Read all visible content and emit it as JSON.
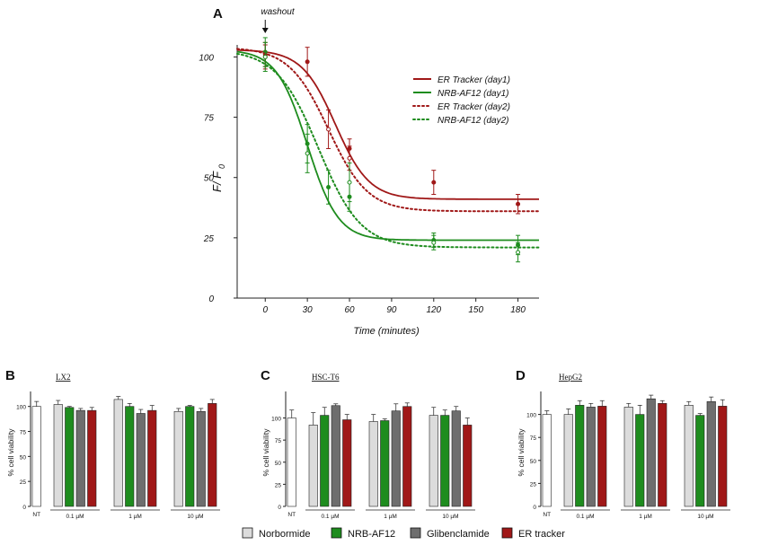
{
  "colors": {
    "er_tracker": "#a01818",
    "nrb_af12": "#1e8c1e",
    "norbormide": "#dcdcdc",
    "glibenclamide": "#6e6e6e",
    "nt": "#ffffff"
  },
  "legend": {
    "norbormide": "Norbormide",
    "nrb_af12": "NRB-AF12",
    "glibenclamide": "Glibenclamide",
    "er_tracker": "ER tracker"
  },
  "chart_data": [
    {
      "type": "line",
      "panel": "A",
      "annotation": "washout",
      "xlabel": "Time (minutes)",
      "ylabel_main": "F/ F",
      "ylabel_sub": "0",
      "xlim": [
        -20,
        195
      ],
      "ylim": [
        0,
        105
      ],
      "xticks": [
        0,
        30,
        60,
        90,
        120,
        150,
        180
      ],
      "yticks": [
        0,
        25,
        50,
        75,
        100
      ],
      "series": [
        {
          "name": "ER Tracker (day1)",
          "color": "#a01818",
          "style": "solid",
          "fit": {
            "top": 103,
            "bottom": 41,
            "x50": 50,
            "slope": 12
          },
          "points": [
            {
              "x": 0,
              "y": 101,
              "err": 5
            },
            {
              "x": 30,
              "y": 98,
              "err": 6
            },
            {
              "x": 60,
              "y": 62,
              "err": 4
            },
            {
              "x": 120,
              "y": 48,
              "err": 5
            },
            {
              "x": 180,
              "y": 39,
              "err": 4
            }
          ]
        },
        {
          "name": "NRB-AF12 (day1)",
          "color": "#1e8c1e",
          "style": "solid",
          "fit": {
            "top": 103,
            "bottom": 24,
            "x50": 30,
            "slope": 11
          },
          "points": [
            {
              "x": 0,
              "y": 102,
              "err": 6
            },
            {
              "x": 30,
              "y": 64,
              "err": 8
            },
            {
              "x": 45,
              "y": 46,
              "err": 7
            },
            {
              "x": 60,
              "y": 42,
              "err": 6
            },
            {
              "x": 120,
              "y": 24,
              "err": 3
            },
            {
              "x": 180,
              "y": 22,
              "err": 4
            }
          ]
        },
        {
          "name": "ER Tracker (day2)",
          "color": "#a01818",
          "style": "dotted",
          "fit": {
            "top": 104,
            "bottom": 36,
            "x50": 45,
            "slope": 14
          },
          "points": [
            {
              "x": 0,
              "y": 100,
              "err": 5
            },
            {
              "x": 45,
              "y": 70,
              "err": 8
            },
            {
              "x": 60,
              "y": 58,
              "err": 5
            }
          ]
        },
        {
          "name": "NRB-AF12 (day2)",
          "color": "#1e8c1e",
          "style": "dotted",
          "fit": {
            "top": 103,
            "bottom": 21,
            "x50": 38,
            "slope": 15
          },
          "points": [
            {
              "x": 0,
              "y": 100,
              "err": 6
            },
            {
              "x": 30,
              "y": 60,
              "err": 8
            },
            {
              "x": 60,
              "y": 48,
              "err": 8
            },
            {
              "x": 120,
              "y": 23,
              "err": 3
            },
            {
              "x": 180,
              "y": 19,
              "err": 4
            }
          ]
        }
      ]
    },
    {
      "type": "bar",
      "panel": "B",
      "title": "LX2",
      "ylabel": "% cell viability",
      "ylim": [
        0,
        115
      ],
      "yticks": [
        0,
        25,
        50,
        75,
        100
      ],
      "nt": {
        "label": "NT",
        "value": 100,
        "err": 5
      },
      "groups": [
        "0.1 µM",
        "1 µM",
        "10 µM"
      ],
      "series": [
        {
          "name": "Norbormide",
          "values": [
            102,
            107,
            95
          ],
          "err": [
            4,
            3,
            3
          ]
        },
        {
          "name": "NRB-AF12",
          "values": [
            99,
            100,
            100
          ],
          "err": [
            1,
            3,
            1
          ]
        },
        {
          "name": "Glibenclamide",
          "values": [
            96,
            93,
            95
          ],
          "err": [
            2,
            4,
            3
          ]
        },
        {
          "name": "ER tracker",
          "values": [
            96,
            96,
            103
          ],
          "err": [
            3,
            5,
            4
          ]
        }
      ]
    },
    {
      "type": "bar",
      "panel": "C",
      "title": "HSC-T6",
      "ylabel": "% cell viability",
      "ylim": [
        0,
        130
      ],
      "yticks": [
        0,
        25,
        50,
        75,
        100
      ],
      "nt": {
        "label": "NT",
        "value": 100,
        "err": 9
      },
      "groups": [
        "0.1 µM",
        "1 µM",
        "10 µM"
      ],
      "series": [
        {
          "name": "Norbormide",
          "values": [
            92,
            96,
            103
          ],
          "err": [
            14,
            8,
            9
          ]
        },
        {
          "name": "NRB-AF12",
          "values": [
            103,
            97,
            103
          ],
          "err": [
            9,
            2,
            6
          ]
        },
        {
          "name": "Glibenclamide",
          "values": [
            114,
            108,
            108
          ],
          "err": [
            2,
            8,
            5
          ]
        },
        {
          "name": "ER tracker",
          "values": [
            98,
            113,
            92
          ],
          "err": [
            6,
            4,
            8
          ]
        }
      ]
    },
    {
      "type": "bar",
      "panel": "D",
      "title": "HepG2",
      "ylabel": "% cell viability",
      "ylim": [
        0,
        125
      ],
      "yticks": [
        0,
        25,
        50,
        75,
        100
      ],
      "nt": {
        "label": "NT",
        "value": 100,
        "err": 4
      },
      "groups": [
        "0.1 µM",
        "1 µM",
        "10 µM"
      ],
      "series": [
        {
          "name": "Norbormide",
          "values": [
            100,
            108,
            110
          ],
          "err": [
            6,
            4,
            4
          ]
        },
        {
          "name": "NRB-AF12",
          "values": [
            110,
            100,
            99
          ],
          "err": [
            5,
            10,
            2
          ]
        },
        {
          "name": "Glibenclamide",
          "values": [
            108,
            117,
            114
          ],
          "err": [
            4,
            4,
            5
          ]
        },
        {
          "name": "ER tracker",
          "values": [
            109,
            112,
            109
          ],
          "err": [
            6,
            3,
            7
          ]
        }
      ]
    }
  ]
}
